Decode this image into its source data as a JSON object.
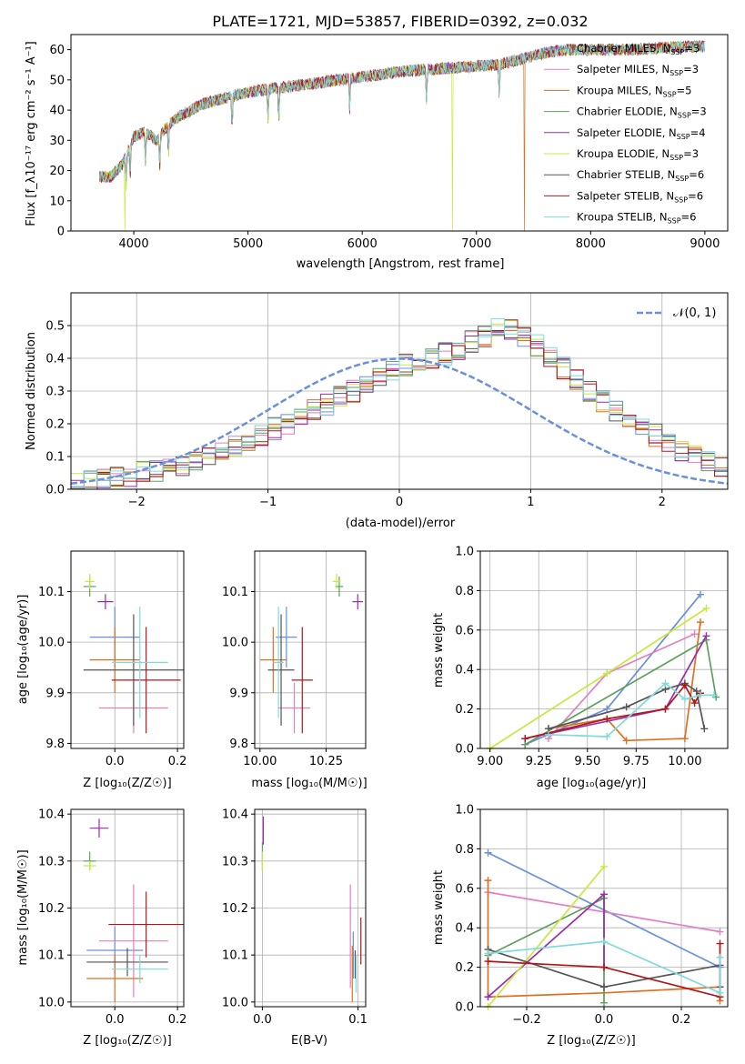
{
  "colors": {
    "chabrier_miles": "#6a8fdc",
    "salpeter_miles": "#e27fc0",
    "kroupa_miles": "#e07020",
    "chabrier_elodie": "#5f9f5f",
    "salpeter_elodie": "#9a2bb0",
    "kroupa_elodie": "#c8e840",
    "chabrier_stelib": "#555555",
    "salpeter_stelib": "#b01818",
    "kroupa_stelib": "#7fdadc",
    "gaussian": "#6a8fdc"
  },
  "chart_data": [
    {
      "id": "spectrum",
      "type": "line",
      "title": "PLATE=1721, MJD=53857, FIBERID=0392, z=0.032",
      "xlabel": "wavelength [Angstrom, rest frame]",
      "ylabel": "Flux [f_λ10⁻¹⁷ erg cm⁻² s⁻¹ A⁻¹]",
      "xlim": [
        3450,
        9200
      ],
      "ylim": [
        0,
        65
      ],
      "xticks": [
        4000,
        5000,
        6000,
        7000,
        8000,
        9000
      ],
      "yticks": [
        0,
        10,
        20,
        30,
        40,
        50,
        60
      ],
      "legend_position": "top-right",
      "legend": [
        {
          "label": "Chabrier MILES, N",
          "sub": "SSP",
          "suffix": "=3",
          "color_key": "chabrier_miles"
        },
        {
          "label": "Salpeter MILES, N",
          "sub": "SSP",
          "suffix": "=3",
          "color_key": "salpeter_miles"
        },
        {
          "label": "Kroupa MILES, N",
          "sub": "SSP",
          "suffix": "=5",
          "color_key": "kroupa_miles"
        },
        {
          "label": "Chabrier ELODIE, N",
          "sub": "SSP",
          "suffix": "=3",
          "color_key": "chabrier_elodie"
        },
        {
          "label": "Salpeter ELODIE, N",
          "sub": "SSP",
          "suffix": "=4",
          "color_key": "salpeter_elodie"
        },
        {
          "label": "Kroupa ELODIE, N",
          "sub": "SSP",
          "suffix": "=3",
          "color_key": "kroupa_elodie"
        },
        {
          "label": "Chabrier STELIB, N",
          "sub": "SSP",
          "suffix": "=6",
          "color_key": "chabrier_stelib"
        },
        {
          "label": "Salpeter STELIB, N",
          "sub": "SSP",
          "suffix": "=6",
          "color_key": "salpeter_stelib"
        },
        {
          "label": "Kroupa STELIB, N",
          "sub": "SSP",
          "suffix": "=6",
          "color_key": "kroupa_stelib"
        }
      ],
      "continuum": {
        "x": [
          3700,
          3800,
          3900,
          4000,
          4100,
          4200,
          4300,
          4400,
          4500,
          4600,
          4800,
          5000,
          5200,
          5400,
          5600,
          5800,
          6000,
          6200,
          6400,
          6600,
          6800,
          7000,
          7200,
          7400,
          7600,
          7800,
          8000,
          8200,
          8400,
          8600,
          8800,
          9000
        ],
        "y": [
          18,
          18,
          22,
          31,
          33,
          30,
          35,
          38,
          40,
          42,
          44,
          46,
          47,
          48,
          49,
          50,
          51,
          52,
          53,
          53.5,
          54,
          54.5,
          55,
          57,
          59,
          60,
          60,
          60,
          60,
          60.5,
          61,
          61
        ]
      },
      "absorption_lines": [
        3934,
        3968,
        4102,
        4227,
        4304,
        4861,
        5175,
        5270,
        5890,
        6563,
        7200
      ],
      "dropouts": [
        {
          "color_key": "kroupa_elodie",
          "x": 3920
        },
        {
          "color_key": "kroupa_elodie",
          "x": 6790
        },
        {
          "color_key": "kroupa_miles",
          "x": 7420
        }
      ]
    },
    {
      "id": "residuals",
      "type": "histogram",
      "xlabel": "(data-model)/error",
      "ylabel": "Normed distribution",
      "xlim": [
        -2.5,
        2.5
      ],
      "ylim": [
        0,
        0.6
      ],
      "xticks": [
        -2,
        -1,
        0,
        1,
        2
      ],
      "yticks": [
        0.0,
        0.1,
        0.2,
        0.3,
        0.4,
        0.5
      ],
      "grid": true,
      "legend_position": "top-right",
      "gaussian_label": "𝒩(0, 1)",
      "bin_width": 0.1,
      "bin_start": -2.5,
      "base_values": [
        0.02,
        0.025,
        0.03,
        0.035,
        0.04,
        0.05,
        0.055,
        0.06,
        0.075,
        0.085,
        0.095,
        0.11,
        0.13,
        0.15,
        0.165,
        0.185,
        0.2,
        0.22,
        0.24,
        0.26,
        0.285,
        0.3,
        0.32,
        0.34,
        0.36,
        0.38,
        0.39,
        0.4,
        0.415,
        0.43,
        0.45,
        0.47,
        0.49,
        0.49,
        0.47,
        0.44,
        0.41,
        0.37,
        0.34,
        0.3,
        0.27,
        0.24,
        0.21,
        0.19,
        0.165,
        0.14,
        0.12,
        0.1,
        0.085,
        0.07,
        0.06
      ]
    },
    {
      "id": "age_vs_z",
      "type": "scatter",
      "xlabel": "Z [log₁₀(Z/Z☉)]",
      "ylabel": "age  [log₁₀(age/yr)]",
      "xlim": [
        -0.14,
        0.22
      ],
      "ylim": [
        9.79,
        10.18
      ],
      "xticks": [
        0.0,
        0.2
      ],
      "xtick_labels": [
        "0.0",
        "0.2"
      ],
      "yticks": [
        9.8,
        9.9,
        10.0,
        10.1
      ],
      "points": [
        {
          "color_key": "chabrier_miles",
          "x": 0.0,
          "y": 10.01,
          "xerr": 0.08,
          "yerr": 0.06
        },
        {
          "color_key": "salpeter_miles",
          "x": 0.06,
          "y": 9.87,
          "xerr": 0.11,
          "yerr": 0.05
        },
        {
          "color_key": "kroupa_miles",
          "x": 0.0,
          "y": 9.965,
          "xerr": 0.08,
          "yerr": 0.065
        },
        {
          "color_key": "chabrier_elodie",
          "x": -0.08,
          "y": 10.11,
          "xerr": 0.02,
          "yerr": 0.02
        },
        {
          "color_key": "salpeter_elodie",
          "x": -0.03,
          "y": 10.08,
          "xerr": 0.025,
          "yerr": 0.015
        },
        {
          "color_key": "kroupa_elodie",
          "x": -0.08,
          "y": 10.12,
          "xerr": 0.015,
          "yerr": 0.015
        },
        {
          "color_key": "chabrier_stelib",
          "x": 0.06,
          "y": 9.945,
          "xerr": 0.16,
          "yerr": 0.11
        },
        {
          "color_key": "salpeter_stelib",
          "x": 0.1,
          "y": 9.925,
          "xerr": 0.11,
          "yerr": 0.105
        },
        {
          "color_key": "kroupa_stelib",
          "x": 0.08,
          "y": 9.96,
          "xerr": 0.09,
          "yerr": 0.11
        }
      ]
    },
    {
      "id": "age_vs_mass",
      "type": "scatter",
      "xlabel": "mass [log₁₀(M/M☉)]",
      "ylabel": "",
      "xlim": [
        9.98,
        10.4
      ],
      "ylim": [
        9.79,
        10.18
      ],
      "xticks": [
        10.0,
        10.25
      ],
      "xtick_labels": [
        "10.00",
        "10.25"
      ],
      "yticks": [
        9.8,
        9.9,
        10.0,
        10.1
      ],
      "points": [
        {
          "color_key": "chabrier_miles",
          "x": 10.1,
          "y": 10.01,
          "xerr": 0.04,
          "yerr": 0.06
        },
        {
          "color_key": "salpeter_miles",
          "x": 10.13,
          "y": 9.87,
          "xerr": 0.06,
          "yerr": 0.05
        },
        {
          "color_key": "kroupa_miles",
          "x": 10.05,
          "y": 9.965,
          "xerr": 0.05,
          "yerr": 0.065
        },
        {
          "color_key": "chabrier_elodie",
          "x": 10.3,
          "y": 10.11,
          "xerr": 0.015,
          "yerr": 0.02
        },
        {
          "color_key": "salpeter_elodie",
          "x": 10.37,
          "y": 10.08,
          "xerr": 0.02,
          "yerr": 0.015
        },
        {
          "color_key": "kroupa_elodie",
          "x": 10.29,
          "y": 10.12,
          "xerr": 0.015,
          "yerr": 0.015
        },
        {
          "color_key": "chabrier_stelib",
          "x": 10.08,
          "y": 9.945,
          "xerr": 0.05,
          "yerr": 0.11
        },
        {
          "color_key": "salpeter_stelib",
          "x": 10.16,
          "y": 9.925,
          "xerr": 0.04,
          "yerr": 0.105
        },
        {
          "color_key": "kroupa_stelib",
          "x": 10.07,
          "y": 9.96,
          "xerr": 0.02,
          "yerr": 0.11
        }
      ]
    },
    {
      "id": "weight_vs_age",
      "type": "line",
      "xlabel": "age  [log₁₀(age/yr)]",
      "ylabel": "mass weight",
      "xlim": [
        8.95,
        10.22
      ],
      "ylim": [
        0,
        1.0
      ],
      "xticks": [
        9.0,
        9.25,
        9.5,
        9.75,
        10.0
      ],
      "xtick_labels": [
        "9.00",
        "9.25",
        "9.50",
        "9.75",
        "10.00"
      ],
      "yticks": [
        0.0,
        0.2,
        0.4,
        0.6,
        0.8,
        1.0
      ],
      "grid": true,
      "series": [
        {
          "color_key": "chabrier_miles",
          "x": [
            9.18,
            9.6,
            10.08
          ],
          "y": [
            0.02,
            0.2,
            0.78
          ]
        },
        {
          "color_key": "salpeter_miles",
          "x": [
            9.3,
            9.6,
            10.05
          ],
          "y": [
            0.05,
            0.38,
            0.58
          ]
        },
        {
          "color_key": "kroupa_miles",
          "x": [
            9.3,
            9.6,
            9.7,
            10.0,
            10.08
          ],
          "y": [
            0.1,
            0.15,
            0.04,
            0.05,
            0.64
          ]
        },
        {
          "color_key": "chabrier_elodie",
          "x": [
            9.18,
            10.11,
            10.16
          ],
          "y": [
            0.02,
            0.55,
            0.26
          ]
        },
        {
          "color_key": "salpeter_elodie",
          "x": [
            9.18,
            9.9,
            10.11
          ],
          "y": [
            0.05,
            0.2,
            0.57
          ]
        },
        {
          "color_key": "kroupa_elodie",
          "x": [
            9.0,
            9.6,
            10.11
          ],
          "y": [
            0.0,
            0.38,
            0.71
          ]
        },
        {
          "color_key": "chabrier_stelib",
          "x": [
            9.3,
            9.7,
            9.9,
            10.0,
            10.06,
            10.1
          ],
          "y": [
            0.1,
            0.21,
            0.3,
            0.33,
            0.29,
            0.1
          ]
        },
        {
          "color_key": "salpeter_stelib",
          "x": [
            9.18,
            9.6,
            9.9,
            10.0,
            10.05,
            10.08
          ],
          "y": [
            0.05,
            0.15,
            0.2,
            0.32,
            0.23,
            0.28
          ]
        },
        {
          "color_key": "kroupa_stelib",
          "x": [
            9.3,
            9.6,
            9.9,
            10.0,
            10.08,
            10.15
          ],
          "y": [
            0.07,
            0.06,
            0.33,
            0.25,
            0.27,
            0.27
          ]
        }
      ]
    },
    {
      "id": "mass_vs_z",
      "type": "scatter",
      "xlabel": "Z [log₁₀(Z/Z☉)]",
      "ylabel": "mass [log₁₀(M/M☉)]",
      "xlim": [
        -0.14,
        0.22
      ],
      "ylim": [
        9.99,
        10.41
      ],
      "xticks": [
        0.0,
        0.2
      ],
      "xtick_labels": [
        "0.0",
        "0.2"
      ],
      "yticks": [
        10.0,
        10.1,
        10.2,
        10.3,
        10.4
      ],
      "points": [
        {
          "color_key": "chabrier_miles",
          "x": 0.0,
          "y": 10.11,
          "xerr": 0.09,
          "yerr": 0.05
        },
        {
          "color_key": "salpeter_miles",
          "x": 0.06,
          "y": 10.13,
          "xerr": 0.11,
          "yerr": 0.12
        },
        {
          "color_key": "kroupa_miles",
          "x": 0.0,
          "y": 10.05,
          "xerr": 0.09,
          "yerr": 0.05
        },
        {
          "color_key": "chabrier_elodie",
          "x": -0.08,
          "y": 10.3,
          "xerr": 0.02,
          "yerr": 0.02
        },
        {
          "color_key": "salpeter_elodie",
          "x": -0.05,
          "y": 10.37,
          "xerr": 0.03,
          "yerr": 0.02
        },
        {
          "color_key": "kroupa_elodie",
          "x": -0.08,
          "y": 10.29,
          "xerr": 0.02,
          "yerr": 0.01
        },
        {
          "color_key": "chabrier_stelib",
          "x": 0.04,
          "y": 10.085,
          "xerr": 0.13,
          "yerr": 0.03
        },
        {
          "color_key": "salpeter_stelib",
          "x": 0.1,
          "y": 10.165,
          "xerr": 0.12,
          "yerr": 0.07
        },
        {
          "color_key": "kroupa_stelib",
          "x": 0.08,
          "y": 10.07,
          "xerr": 0.09,
          "yerr": 0.03
        }
      ]
    },
    {
      "id": "mass_vs_ebv",
      "type": "scatter",
      "xlabel": "E(B-V)",
      "ylabel": "",
      "xlim": [
        -0.008,
        0.108
      ],
      "ylim": [
        9.99,
        10.41
      ],
      "xticks": [
        0.0,
        0.1
      ],
      "xtick_labels": [
        "0.0",
        "0.1"
      ],
      "yticks": [
        10.0,
        10.1,
        10.2,
        10.3,
        10.4
      ],
      "points": [
        {
          "color_key": "chabrier_miles",
          "x": 0.095,
          "y": 10.1,
          "xerr": 0.0,
          "yerr": 0.05
        },
        {
          "color_key": "salpeter_miles",
          "x": 0.092,
          "y": 10.14,
          "xerr": 0.0,
          "yerr": 0.11
        },
        {
          "color_key": "kroupa_miles",
          "x": 0.094,
          "y": 10.06,
          "xerr": 0.0,
          "yerr": 0.06
        },
        {
          "color_key": "chabrier_elodie",
          "x": 0.0,
          "y": 10.31,
          "xerr": 0.0,
          "yerr": 0.03
        },
        {
          "color_key": "salpeter_elodie",
          "x": 0.001,
          "y": 10.365,
          "xerr": 0.0,
          "yerr": 0.03
        },
        {
          "color_key": "kroupa_elodie",
          "x": 0.0,
          "y": 10.3,
          "xerr": 0.0,
          "yerr": 0.02
        },
        {
          "color_key": "chabrier_stelib",
          "x": 0.097,
          "y": 10.08,
          "xerr": 0.0,
          "yerr": 0.03
        },
        {
          "color_key": "salpeter_stelib",
          "x": 0.103,
          "y": 10.13,
          "xerr": 0.0,
          "yerr": 0.05
        },
        {
          "color_key": "kroupa_stelib",
          "x": 0.098,
          "y": 10.06,
          "xerr": 0.0,
          "yerr": 0.04
        }
      ]
    },
    {
      "id": "weight_vs_z",
      "type": "line",
      "xlabel": "Z [log₁₀(Z/Z☉)]",
      "ylabel": "mass weight",
      "xlim": [
        -0.32,
        0.32
      ],
      "ylim": [
        0,
        1.0
      ],
      "xticks": [
        -0.2,
        0.0,
        0.2
      ],
      "xtick_labels": [
        "−0.2",
        "0.0",
        "0.2"
      ],
      "yticks": [
        0.0,
        0.2,
        0.4,
        0.6,
        0.8,
        1.0
      ],
      "grid": true,
      "series": [
        {
          "color_key": "chabrier_miles",
          "x": [
            -0.3,
            0.3
          ],
          "y": [
            0.78,
            0.2
          ]
        },
        {
          "color_key": "salpeter_miles",
          "x": [
            -0.3,
            0.3
          ],
          "y": [
            0.58,
            0.38
          ]
        },
        {
          "color_key": "kroupa_miles",
          "x": [
            -0.3,
            -0.3,
            0.0,
            0.3,
            0.3
          ],
          "y": [
            0.64,
            0.05,
            0.07,
            0.1,
            0.03
          ]
        },
        {
          "color_key": "chabrier_elodie",
          "x": [
            -0.3,
            0.0,
            0.0
          ],
          "y": [
            0.26,
            0.55,
            0.02
          ]
        },
        {
          "color_key": "salpeter_elodie",
          "x": [
            -0.3,
            0.0,
            0.0
          ],
          "y": [
            0.05,
            0.57,
            0.2
          ]
        },
        {
          "color_key": "kroupa_elodie",
          "x": [
            -0.3,
            0.0
          ],
          "y": [
            0.0,
            0.71
          ]
        },
        {
          "color_key": "chabrier_stelib",
          "x": [
            -0.3,
            0.0,
            0.3,
            0.3
          ],
          "y": [
            0.29,
            0.1,
            0.21,
            0.1
          ]
        },
        {
          "color_key": "salpeter_stelib",
          "x": [
            -0.3,
            0.0,
            0.3,
            0.3
          ],
          "y": [
            0.23,
            0.2,
            0.05,
            0.32
          ]
        },
        {
          "color_key": "kroupa_stelib",
          "x": [
            -0.3,
            0.0,
            0.3,
            0.3
          ],
          "y": [
            0.27,
            0.33,
            0.07,
            0.25
          ]
        }
      ]
    }
  ]
}
